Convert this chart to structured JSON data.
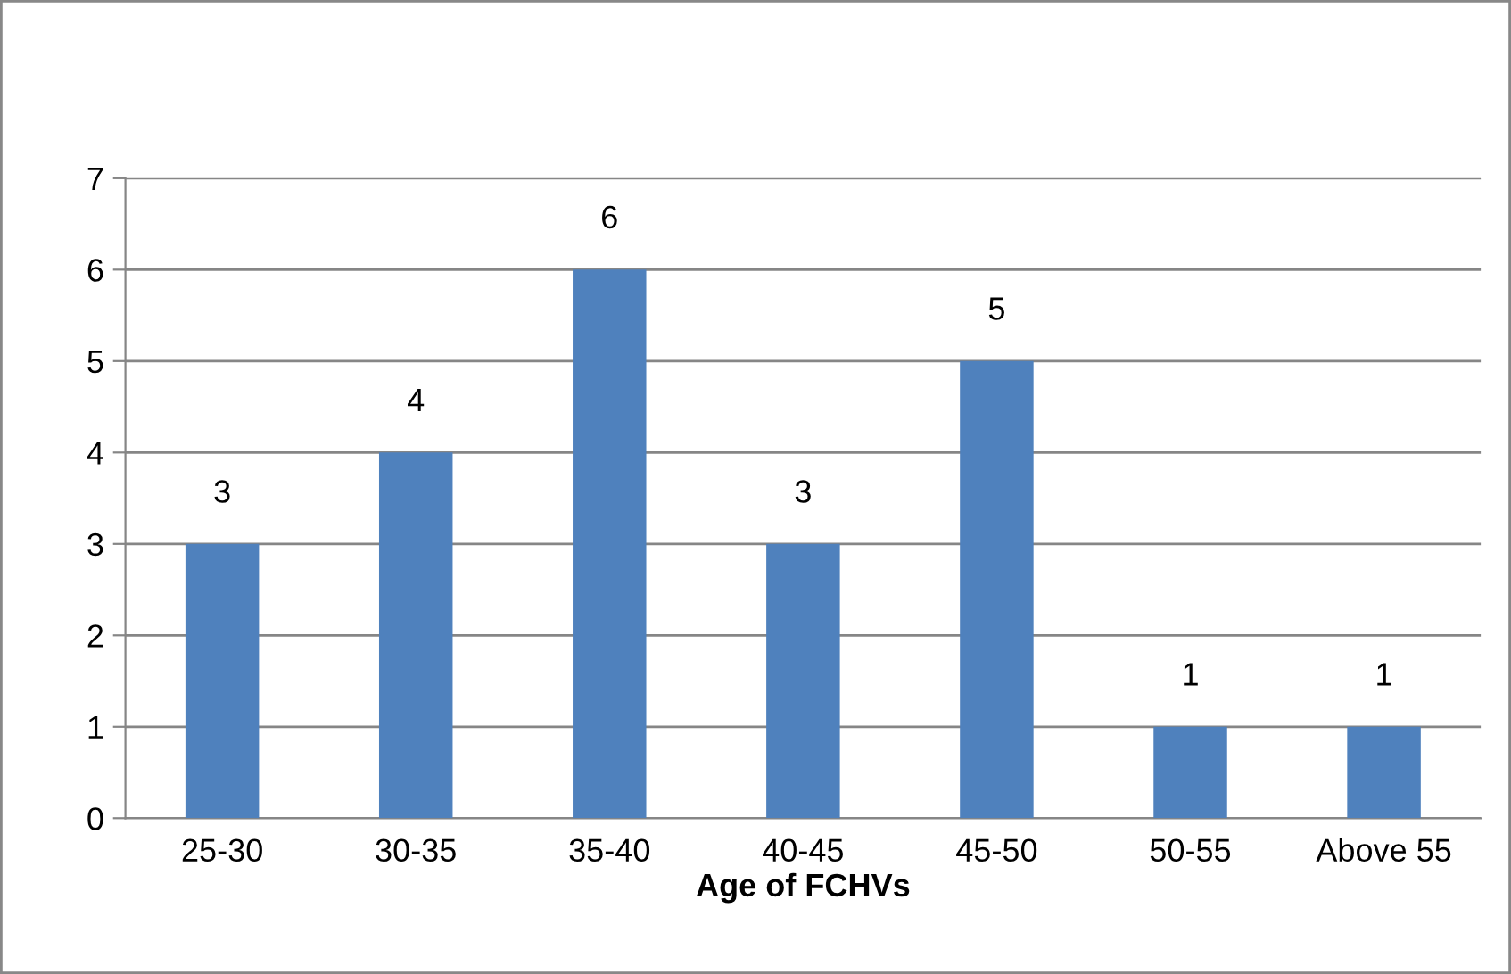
{
  "chart_data": {
    "type": "bar",
    "xlabel": "Age of FCHVs",
    "categories": [
      "25-30",
      "30-35",
      "35-40",
      "40-45",
      "45-50",
      "50-55",
      "Above 55"
    ],
    "values": [
      3,
      4,
      6,
      3,
      5,
      1,
      1
    ],
    "color": "#4f81bd",
    "ylim": [
      0,
      7
    ],
    "yticks": [
      0,
      1,
      2,
      3,
      4,
      5,
      6,
      7
    ],
    "grid": "y",
    "data_labels": true
  }
}
